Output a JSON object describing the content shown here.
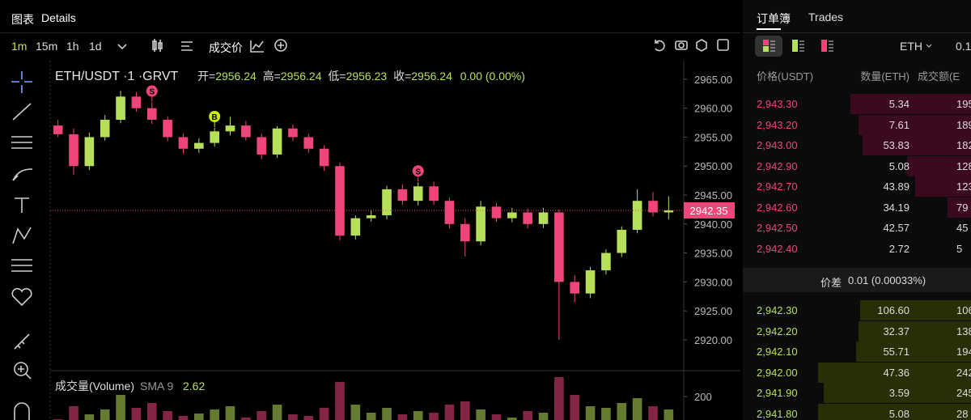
{
  "tabs": [
    "图表",
    "Details"
  ],
  "intervals": [
    "1m",
    "15m",
    "1h",
    "1d"
  ],
  "price_type": "成交价",
  "chart_data": {
    "type": "candlestick",
    "title": "ETH/USDT ·1 ·GRVT",
    "ohlc_legend": [
      {
        "key": "开=",
        "value": "2956.24"
      },
      {
        "key": "高=",
        "value": "2956.24"
      },
      {
        "key": "低=",
        "value": "2956.23"
      },
      {
        "key": "收=",
        "value": "2956.24"
      }
    ],
    "change": "0.00 (0.00%)",
    "open": [
      2957,
      2955.5,
      2950,
      2955,
      2958,
      2962,
      2960,
      2958,
      2955,
      2953,
      2954,
      2956,
      2957,
      2955,
      2952,
      2956.5,
      2955,
      2953,
      2950,
      2938,
      2941,
      2941.5,
      2946,
      2944,
      2946.5,
      2944,
      2940,
      2937,
      2943,
      2941,
      2942,
      2940,
      2942,
      2930,
      2928,
      2932,
      2935,
      2939,
      2944,
      2942
    ],
    "high": [
      2958,
      2956.5,
      2955.8,
      2958.8,
      2963,
      2962.8,
      2961,
      2958.6,
      2955.6,
      2954.8,
      2956.6,
      2958.5,
      2957.8,
      2955.6,
      2956.9,
      2957.2,
      2955.6,
      2953.6,
      2950.6,
      2941.5,
      2942.3,
      2946.6,
      2946.8,
      2947.2,
      2947.3,
      2944.6,
      2941,
      2944,
      2943.6,
      2942.8,
      2942.6,
      2942.8,
      2942.5,
      2931.2,
      2932.6,
      2935.6,
      2939.6,
      2946,
      2945.5,
      2944.8
    ],
    "low": [
      2955,
      2948.5,
      2949.3,
      2954.4,
      2957.4,
      2959.4,
      2957.3,
      2954.3,
      2952.2,
      2952.3,
      2953.4,
      2955.3,
      2954.4,
      2951.2,
      2951.4,
      2954.3,
      2952.3,
      2949.2,
      2937.2,
      2937.3,
      2940.4,
      2940.8,
      2943.3,
      2943.2,
      2943.3,
      2939.2,
      2934.4,
      2936.3,
      2940.4,
      2940.3,
      2939.2,
      2939.3,
      2920,
      2926.5,
      2927.2,
      2931.3,
      2934.3,
      2938.4,
      2941.3,
      2940.8
    ],
    "close": [
      2955.5,
      2950,
      2955,
      2958,
      2962,
      2960,
      2958,
      2955,
      2953,
      2954,
      2956,
      2957,
      2955,
      2952,
      2956.5,
      2955,
      2953,
      2950,
      2938,
      2941,
      2941.5,
      2946,
      2944,
      2946.5,
      2944,
      2940,
      2937,
      2943,
      2941,
      2942,
      2940,
      2942,
      2930,
      2928,
      2932,
      2935,
      2939,
      2944,
      2942,
      2942.35
    ],
    "up_color": "#b6e05a",
    "down_color": "#f0457a",
    "ylim": [
      2914.4,
      2968.2
    ],
    "yticks": [
      {
        "value": 2920,
        "label": "2920.00"
      },
      {
        "value": 2925,
        "label": "2925.00"
      },
      {
        "value": 2930,
        "label": "2930.00"
      },
      {
        "value": 2935,
        "label": "2935.00"
      },
      {
        "value": 2940,
        "label": "2940.00"
      },
      {
        "value": 2945,
        "label": "2945.00"
      },
      {
        "value": 2950,
        "label": "2950.00"
      },
      {
        "value": 2955,
        "label": "2955.00"
      },
      {
        "value": 2960,
        "label": "2960.00"
      },
      {
        "value": 2965,
        "label": "2965.00"
      }
    ],
    "last_price": 2942.35,
    "markers": [
      {
        "text": "S",
        "at": 6,
        "color": "#f0457a"
      },
      {
        "text": "B",
        "at": 10,
        "color": "#c6f000"
      },
      {
        "text": "S",
        "at": 23,
        "color": "#f0457a"
      }
    ],
    "volume": {
      "title": "成交量(Volume)",
      "sma_label": "SMA 9",
      "sma_value": 2.62,
      "values": [
        60,
        140,
        90,
        120,
        210,
        130,
        160,
        110,
        80,
        95,
        120,
        140,
        70,
        110,
        150,
        90,
        80,
        130,
        290,
        150,
        100,
        130,
        90,
        110,
        100,
        150,
        170,
        120,
        90,
        70,
        110,
        100,
        320,
        210,
        140,
        130,
        160,
        190,
        140,
        120
      ],
      "ylim": [
        0,
        330
      ],
      "yticks": [
        200
      ]
    }
  },
  "order_book": {
    "tabs": [
      "订单簿",
      "Trades"
    ],
    "symbol": "ETH",
    "tick_size": "0.1",
    "columns": [
      "价格(USDT)",
      "数量(ETH)",
      "成交额(E"
    ],
    "asks": [
      [
        "2,943.30",
        "5.34",
        "195"
      ],
      [
        "2,943.20",
        "7.61",
        "189"
      ],
      [
        "2,943.00",
        "53.83",
        "182"
      ],
      [
        "2,942.90",
        "5.08",
        "128"
      ],
      [
        "2,942.70",
        "43.89",
        "123"
      ],
      [
        "2,942.60",
        "34.19",
        "79"
      ],
      [
        "2,942.50",
        "42.57",
        "45"
      ],
      [
        "2,942.40",
        "2.72",
        "5"
      ]
    ],
    "spread_label": "价差",
    "spread": "0.01 (0.00033%)",
    "bids": [
      [
        "2,942.30",
        "106.60",
        "106"
      ],
      [
        "2,942.20",
        "32.37",
        "138"
      ],
      [
        "2,942.10",
        "55.71",
        "194"
      ],
      [
        "2,942.00",
        "47.36",
        "242"
      ],
      [
        "2,941.90",
        "3.59",
        "245"
      ],
      [
        "2,941.80",
        "5.08",
        "28"
      ]
    ]
  }
}
